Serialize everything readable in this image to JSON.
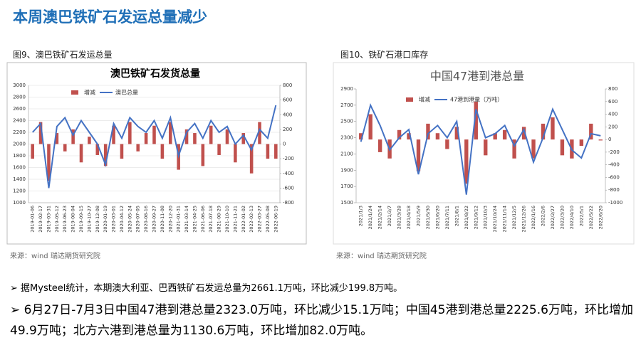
{
  "header": {
    "title": "本周澳巴铁矿石发运总量减少"
  },
  "panels": [
    {
      "caption": "图9、澳巴铁矿石发运总量",
      "source": "来源：wind   瑞达期货研究院"
    },
    {
      "caption": "图10、铁矿石港口库存",
      "source": "来源：wind   瑞达期货研究院"
    }
  ],
  "bullets": [
    "据Mysteel统计，本期澳大利亚、巴西铁矿石发运总量为2661.1万吨，环比减少199.8万吨。",
    "6月27日-7月3日中国47港到港总量2323.0万吨，环比减少15.1万吨；中国45港到港总量2225.6万吨，环比增加49.9万吨；北方六港到港总量为1130.6万吨，环比增加82.0万吨。"
  ],
  "chart_data": [
    {
      "type": "bar-line",
      "title": "澳巴铁矿石发货总量",
      "categories": [
        "2019-01-06",
        "2019-02-17",
        "2019-03-31",
        "2019-05-12",
        "2019-06-23",
        "2019-08-04",
        "2019-09-15",
        "2019-10-27",
        "2019-12-08",
        "2020-01-19",
        "2020-03-01",
        "2020-04-12",
        "2020-05-24",
        "2020-07-05",
        "2020-08-16",
        "2020-09-27",
        "2020-11-08",
        "2020-12-20",
        "2021-01-31",
        "2021-03-14",
        "2021-04-25",
        "2021-06-06",
        "2021-07-18",
        "2021-08-29",
        "2021-10-10",
        "2021-11-21",
        "2022-01-02",
        "2022-02-13",
        "2022-03-27",
        "2022-05-08",
        "2022-06-19"
      ],
      "series": [
        {
          "name": "增减",
          "color": "#c0504d",
          "axis": "y2",
          "values": [
            -200,
            300,
            -500,
            150,
            -100,
            200,
            -250,
            100,
            -150,
            -300,
            250,
            -200,
            300,
            -100,
            150,
            250,
            -200,
            300,
            -350,
            200,
            150,
            -300,
            250,
            -150,
            200,
            -250,
            150,
            -400,
            300,
            -200,
            -199.8
          ]
        },
        {
          "name": "澳巴总量",
          "color": "#4472c4",
          "values": [
            2200,
            2350,
            1250,
            2300,
            2450,
            2150,
            2400,
            2200,
            2000,
            1650,
            2350,
            2100,
            2450,
            2300,
            2200,
            2400,
            2100,
            2450,
            1800,
            2200,
            2350,
            2100,
            2400,
            2200,
            2300,
            2000,
            2150,
            1900,
            2250,
            2100,
            2661.1
          ]
        }
      ],
      "ylim": [
        1000,
        3000
      ],
      "yticks": [
        1000,
        1200,
        1400,
        1600,
        1800,
        2000,
        2200,
        2400,
        2600,
        2800,
        3000
      ],
      "y2lim": [
        -800,
        800
      ],
      "y2ticks": [
        -800,
        -600,
        -400,
        -200,
        0,
        200,
        400,
        600,
        800
      ],
      "grid": true
    },
    {
      "type": "bar-line",
      "title": "中国47港到港总量",
      "categories": [
        "2021/1/3",
        "2021/1/24",
        "2021/2/14",
        "2021/3/7",
        "2021/3/28",
        "2021/4/18",
        "2021/5/9",
        "2021/5/30",
        "2021/6/20",
        "2021/7/11",
        "2021/8/1",
        "2021/8/22",
        "2021/9/12",
        "2021/10/3",
        "2021/10/24",
        "2021/11/14",
        "2021/12/5",
        "2021/12/26",
        "2022/1/16",
        "2022/2/6",
        "2022/2/27",
        "2022/3/20",
        "2022/4/10",
        "2022/5/1",
        "2022/5/22",
        "2022/6/20"
      ],
      "series": [
        {
          "name": "增减",
          "color": "#c0504d",
          "axis": "y2",
          "values": [
            100,
            400,
            -200,
            -300,
            150,
            100,
            -500,
            250,
            100,
            -150,
            200,
            -700,
            600,
            -250,
            100,
            150,
            -300,
            200,
            -300,
            250,
            350,
            -250,
            -300,
            -100,
            250,
            -15.1
          ]
        },
        {
          "name": "47港到港量（万吨）",
          "color": "#4472c4",
          "values": [
            2250,
            2700,
            2450,
            2150,
            2300,
            2400,
            1850,
            2350,
            2450,
            2300,
            2500,
            1600,
            2650,
            2300,
            2350,
            2450,
            2200,
            2400,
            2000,
            2300,
            2650,
            2400,
            2150,
            2050,
            2350,
            2323
          ]
        }
      ],
      "ylim": [
        1500,
        2900
      ],
      "yticks": [
        1500,
        1700,
        1900,
        2100,
        2300,
        2500,
        2700,
        2900
      ],
      "y2lim": [
        -1000,
        800
      ],
      "y2ticks": [
        -1000,
        -800,
        -600,
        -400,
        -200,
        0,
        200,
        400,
        600,
        800
      ],
      "grid": false
    }
  ]
}
